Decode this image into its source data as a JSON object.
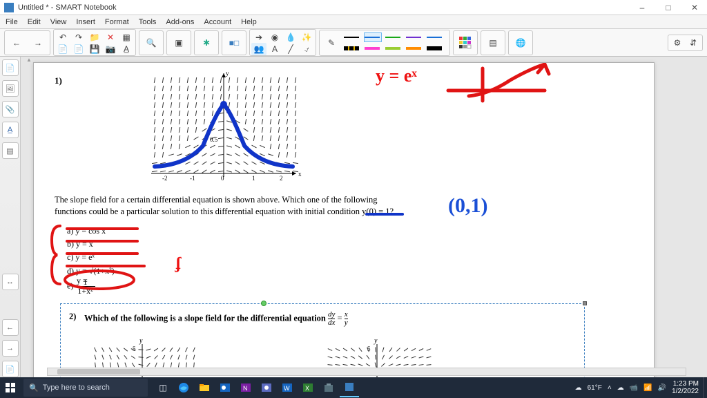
{
  "window": {
    "title": "Untitled * - SMART Notebook"
  },
  "menu": {
    "items": [
      "File",
      "Edit",
      "View",
      "Insert",
      "Format",
      "Tools",
      "Add-ons",
      "Account",
      "Help"
    ]
  },
  "toolbar": {
    "pen_colors_row1": [
      "#000000",
      "#1a6fd6",
      "#18a818",
      "#7030d0",
      "#1a6fd6"
    ],
    "pen_colors_row2": [
      "#e7b700",
      "#ff3fcf",
      "#9acd32",
      "#ff8c00",
      "#000000"
    ],
    "selected_pen_index": 1
  },
  "page": {
    "q1": {
      "number": "1)",
      "prompt_line1": "The slope field for a certain differential equation is shown above. Which one of the following",
      "prompt_line2": "functions could be a particular solution to this differential equation with initial condition ",
      "initial_cond": "y(0) = 1?",
      "choices": {
        "a": "a)  y = cos x",
        "b": "b)  y = x",
        "c": "c)  y = eˣ",
        "d": "d)  y = √(1+x²)",
        "e_label": "e)",
        "e_eq": "y = 1 / (1+x²)"
      },
      "slopefield": {
        "x_ticks": [
          "-2",
          "-1",
          "0",
          "1",
          "2"
        ],
        "y_ticks_left": [
          "0.5",
          "1"
        ],
        "axis_label_x": "x",
        "axis_label_y": "y"
      },
      "annotations": {
        "eq_right": "y = eˣ",
        "point": "(0,1)",
        "scribble": "ʄ"
      }
    },
    "q2": {
      "number": "2)",
      "prompt": "Which of the following is a slope field for the differential equation ",
      "eq_frac_top": "dy",
      "eq_frac_bot": "dx",
      "eq_rhs_top": "x",
      "eq_rhs_bot": "y",
      "small_axis_label": "y",
      "small_tick": "5"
    }
  },
  "colors": {
    "red_ink": "#e01414",
    "blue_ink": "#1a4fd6",
    "blue_marker": "#1034c8"
  },
  "taskbar": {
    "search_placeholder": "Type here to search",
    "weather": "61°F",
    "time": "1:23 PM",
    "date": "1/2/2022"
  }
}
